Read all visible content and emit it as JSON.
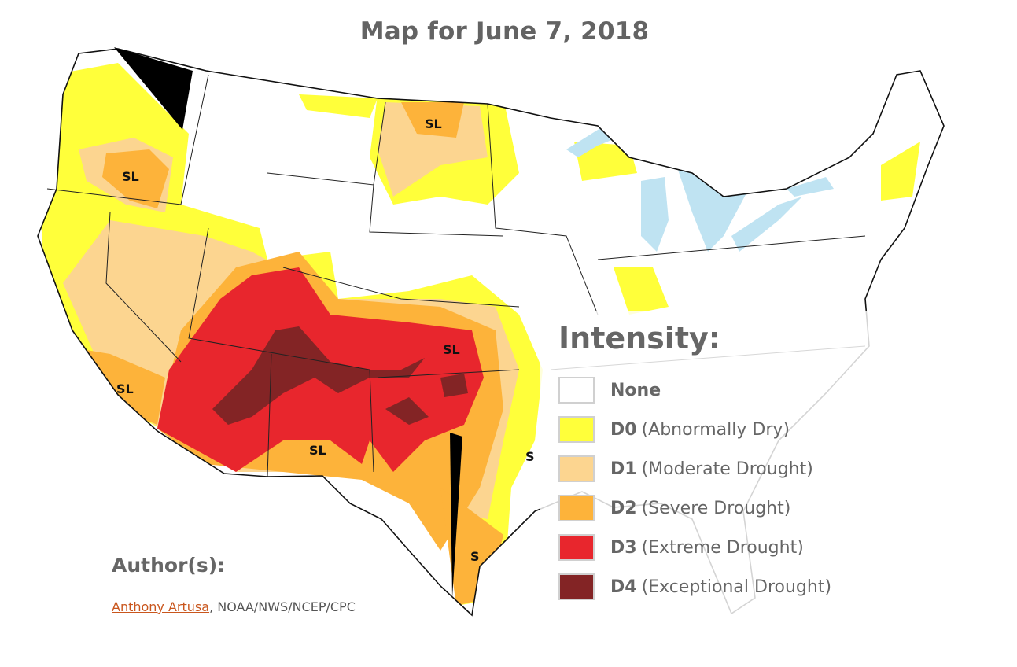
{
  "title": "Map for June 7, 2018",
  "legend": {
    "title": "Intensity:",
    "items": [
      {
        "code": "None",
        "description": "",
        "color": "#ffffff"
      },
      {
        "code": "D0",
        "description": "(Abnormally Dry)",
        "color": "#ffff3a"
      },
      {
        "code": "D1",
        "description": "(Moderate Drought)",
        "color": "#fcd590"
      },
      {
        "code": "D2",
        "description": "(Severe Drought)",
        "color": "#fdb33a"
      },
      {
        "code": "D3",
        "description": "(Extreme Drought)",
        "color": "#e8262d"
      },
      {
        "code": "D4",
        "description": "(Exceptional Drought)",
        "color": "#832425"
      }
    ]
  },
  "map_labels": [
    "SL",
    "SL",
    "SL",
    "SL",
    "SL",
    "S",
    "S"
  ],
  "author": {
    "heading": "Author(s):",
    "name": "Anthony Artusa",
    "affiliation": ", NOAA/NWS/NCEP/CPC"
  },
  "colors": {
    "lakes": "#bfe3f2",
    "rivers": "#7fb7e6",
    "borders": "#222222"
  }
}
